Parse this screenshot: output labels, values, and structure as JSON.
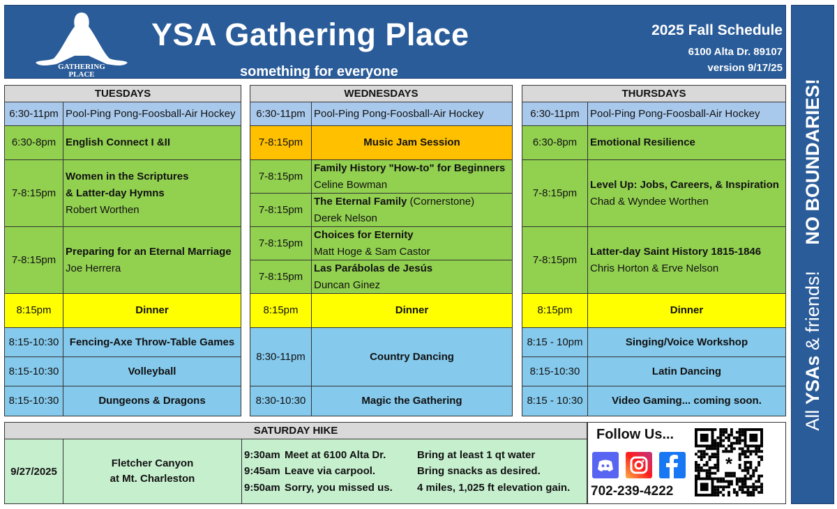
{
  "header": {
    "logo_text": [
      "YSA",
      "GATHERING",
      "PLACE"
    ],
    "title": "YSA Gathering Place",
    "tagline": "something for everyone",
    "schedule": "2025 Fall Schedule",
    "address": "6100 Alta Dr. 89107",
    "version": "version 9/17/25"
  },
  "colors": {
    "blue_header": "#2a5c99",
    "pool": "#a9c9ec",
    "class": "#92d050",
    "jam": "#ffc000",
    "dinner": "#ffff00",
    "evening": "#85c9ec",
    "hike": "#c6efce",
    "gray": "#d9d9d9"
  },
  "days": [
    {
      "name": "TUESDAYS",
      "rows": [
        {
          "time": "6:30-11pm",
          "title": "Pool-Ping Pong-Foosball-Air Hockey",
          "color": "pool",
          "bold": false
        },
        {
          "time": "6:30-8pm",
          "title": "English Connect I &II",
          "color": "class",
          "bold": true
        },
        {
          "time": "7-8:15pm",
          "title": "Women in the Scriptures",
          "title2": "& Latter-day Hymns",
          "subtitle": "Robert Worthen",
          "color": "class",
          "bold": true
        },
        {
          "time": "7-8:15pm",
          "title": "Preparing for an Eternal Marriage",
          "subtitle": "Joe Herrera",
          "color": "class",
          "bold": true
        },
        {
          "time": "8:15pm",
          "title": "Dinner",
          "color": "dinner",
          "bold": true,
          "center": true
        },
        {
          "time": "8:15-10:30",
          "title": "Fencing-Axe Throw-Table Games",
          "color": "evening",
          "bold": true,
          "center": true
        },
        {
          "time": "8:15-10:30",
          "title": "Volleyball",
          "color": "evening",
          "bold": true,
          "center": true
        },
        {
          "time": "8:15-10:30",
          "title": "Dungeons & Dragons",
          "color": "evening",
          "bold": true,
          "center": true
        }
      ]
    },
    {
      "name": "WEDNESDAYS",
      "rows": [
        {
          "time": "6:30-11pm",
          "title": "Pool-Ping Pong-Foosball-Air Hockey",
          "color": "pool",
          "bold": false
        },
        {
          "time": "7-8:15pm",
          "title": "Music Jam Session",
          "color": "jam",
          "bold": true,
          "center": true
        },
        {
          "time": "7-8:15pm",
          "title": "Family History \"How-to\" for Beginners",
          "subtitle": "Celine Bowman",
          "color": "class",
          "bold": true
        },
        {
          "time": "7-8:15pm",
          "title": "The Eternal Family",
          "title_suffix": " (Cornerstone)",
          "subtitle": "Derek Nelson",
          "color": "class",
          "bold": true
        },
        {
          "time": "7-8:15pm",
          "title": "Choices for Eternity",
          "subtitle": "Matt Hoge & Sam Castor",
          "color": "class",
          "bold": true
        },
        {
          "time": "7-8:15pm",
          "title": "Las Parábolas de Jesús",
          "subtitle": "Duncan Ginez",
          "color": "class",
          "bold": true
        },
        {
          "time": "8:15pm",
          "title": "Dinner",
          "color": "dinner",
          "bold": true,
          "center": true
        },
        {
          "time": "8:30-11pm",
          "title": "Country Dancing",
          "color": "evening",
          "bold": true,
          "center": true
        },
        {
          "time": "8:30-10:30",
          "title": "Magic the Gathering",
          "color": "evening",
          "bold": true,
          "center": true
        }
      ]
    },
    {
      "name": "THURSDAYS",
      "rows": [
        {
          "time": "6:30-11pm",
          "title": "Pool-Ping Pong-Foosball-Air Hockey",
          "color": "pool",
          "bold": false
        },
        {
          "time": "6:30-8pm",
          "title": "Emotional Resilience",
          "color": "class",
          "bold": true
        },
        {
          "time": "7-8:15pm",
          "title": "Level Up: Jobs, Careers, & Inspiration",
          "subtitle": "Chad & Wyndee  Worthen",
          "color": "class",
          "bold": true
        },
        {
          "time": "7-8:15pm",
          "title": "Latter-day Saint History 1815-1846",
          "subtitle": "Chris Horton & Erve Nelson",
          "color": "class",
          "bold": true
        },
        {
          "time": "8:15pm",
          "title": "Dinner",
          "color": "dinner",
          "bold": true,
          "center": true
        },
        {
          "time": "8:15 - 10pm",
          "title": "Singing/Voice  Workshop",
          "color": "evening",
          "bold": true,
          "center": true
        },
        {
          "time": "8:15-10:30",
          "title": "Latin Dancing",
          "color": "evening",
          "bold": true,
          "center": true
        },
        {
          "time": "8:15 - 10:30",
          "title": "Video Gaming...  coming soon.",
          "color": "evening",
          "bold": true,
          "center": true
        }
      ]
    }
  ],
  "saturday": {
    "heading": "SATURDAY  HIKE",
    "date": "9/27/2025",
    "location": [
      "Fletcher Canyon",
      "at Mt. Charleston"
    ],
    "schedule": [
      {
        "time": "9:30am",
        "text": "Meet at 6100 Alta Dr.",
        "note": "Bring at least 1 qt water"
      },
      {
        "time": "9:45am",
        "text": "Leave via carpool.",
        "note": "Bring snacks as desired."
      },
      {
        "time": "9:50am",
        "text": "Sorry, you missed us.",
        "note": "4 miles, 1,025 ft elevation gain."
      }
    ]
  },
  "follow": {
    "heading": "Follow Us...",
    "phone": "702-239-4222",
    "icons": [
      "discord-icon",
      "instagram-icon",
      "facebook-icon",
      "qr-code"
    ]
  },
  "banner": {
    "line1_pre": "All ",
    "line1_bold": "YSAs",
    "line1_post": " & friends!",
    "line2": "NO BOUNDARIES!"
  }
}
